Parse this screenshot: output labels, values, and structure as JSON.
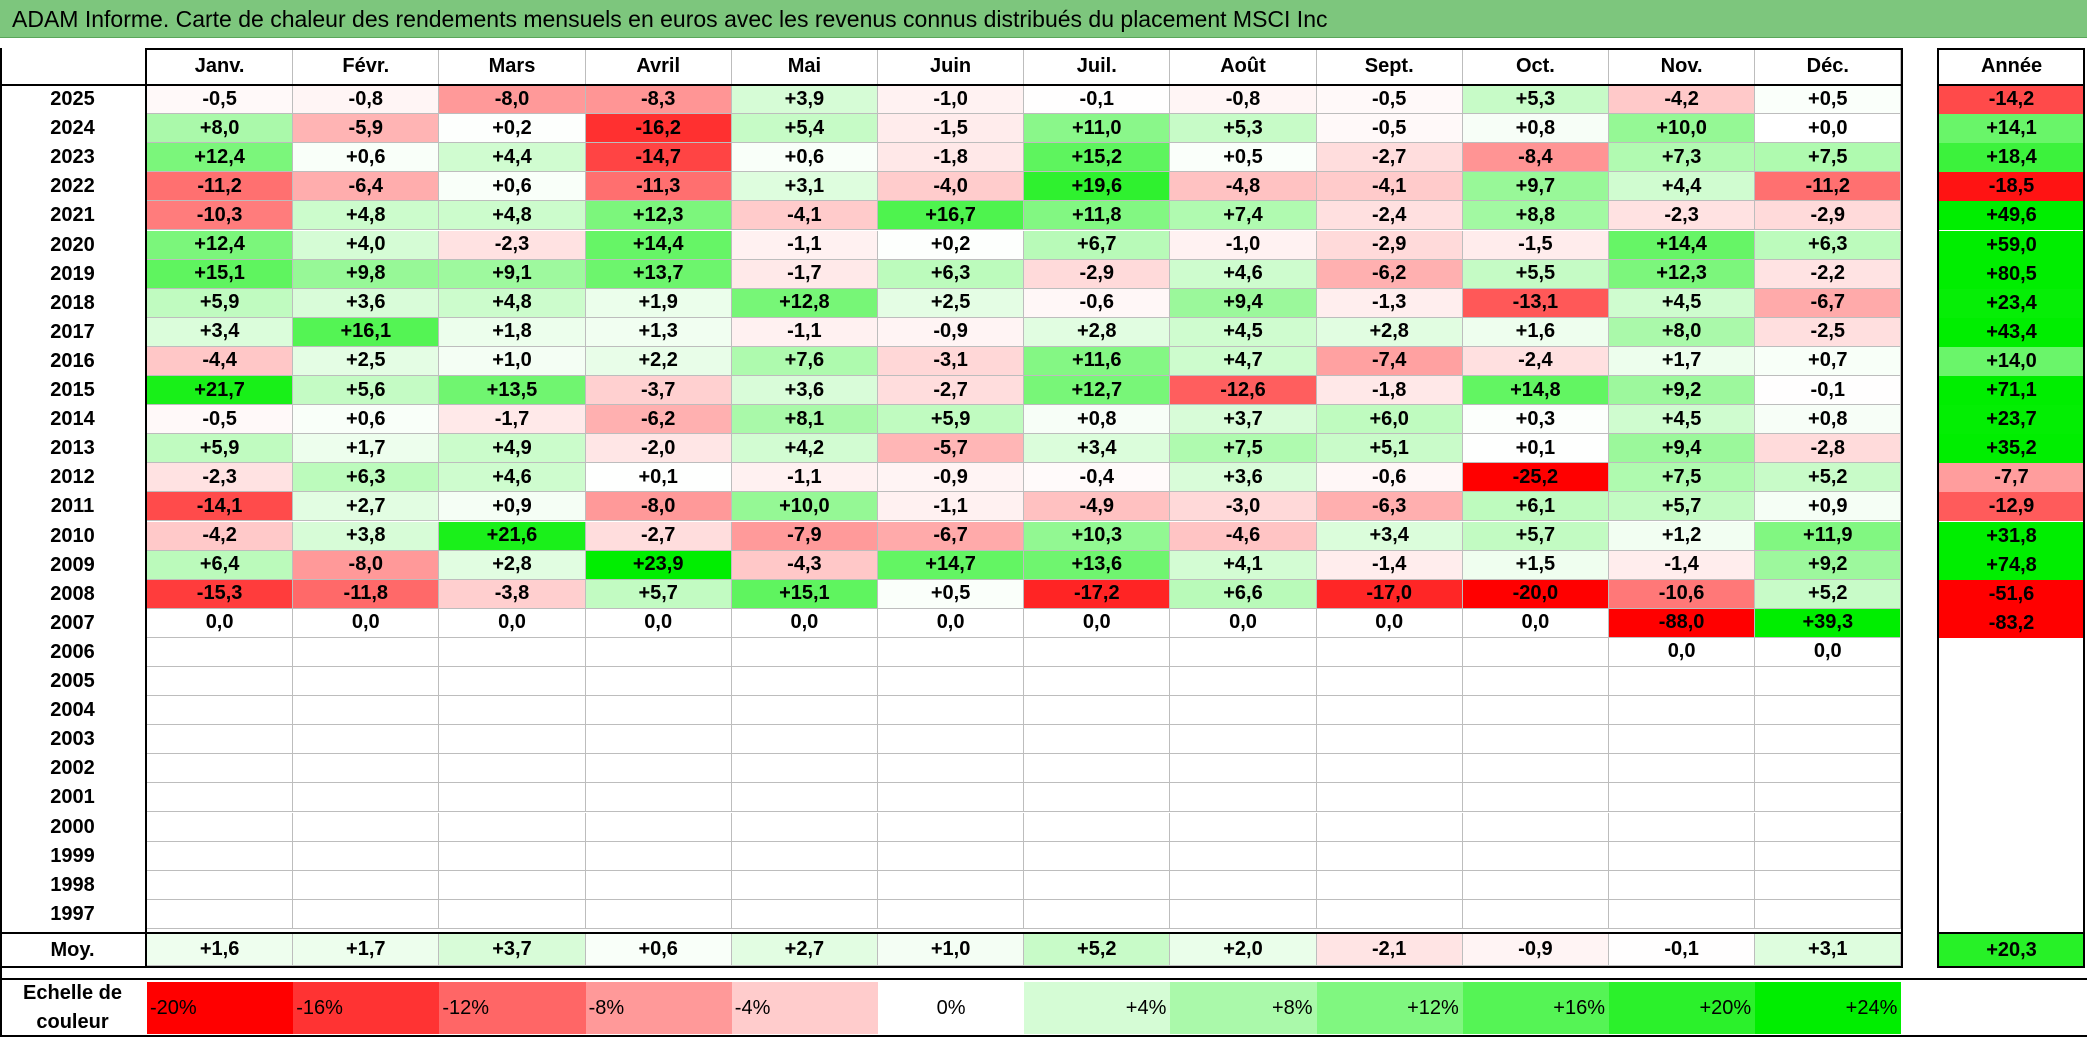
{
  "title": "ADAM Informe. Carte de chaleur des rendements mensuels en euros avec les revenus connus distribués du placement MSCI Inc",
  "chart_data": {
    "type": "heatmap",
    "months": [
      "Janv.",
      "Févr.",
      "Mars",
      "Avril",
      "Mai",
      "Juin",
      "Juil.",
      "Août",
      "Sept.",
      "Oct.",
      "Nov.",
      "Déc."
    ],
    "year_header": "Année",
    "rows": [
      {
        "year": "2025",
        "values": [
          "-0,5",
          "-0,8",
          "-8,0",
          "-8,3",
          "+3,9",
          "-1,0",
          "-0,1",
          "-0,8",
          "-0,5",
          "+5,3",
          "-4,2",
          "+0,5"
        ],
        "annual": "-14,2"
      },
      {
        "year": "2024",
        "values": [
          "+8,0",
          "-5,9",
          "+0,2",
          "-16,2",
          "+5,4",
          "-1,5",
          "+11,0",
          "+5,3",
          "-0,5",
          "+0,8",
          "+10,0",
          "+0,0"
        ],
        "annual": "+14,1"
      },
      {
        "year": "2023",
        "values": [
          "+12,4",
          "+0,6",
          "+4,4",
          "-14,7",
          "+0,6",
          "-1,8",
          "+15,2",
          "+0,5",
          "-2,7",
          "-8,4",
          "+7,3",
          "+7,5"
        ],
        "annual": "+18,4"
      },
      {
        "year": "2022",
        "values": [
          "-11,2",
          "-6,4",
          "+0,6",
          "-11,3",
          "+3,1",
          "-4,0",
          "+19,6",
          "-4,8",
          "-4,1",
          "+9,7",
          "+4,4",
          "-11,2"
        ],
        "annual": "-18,5"
      },
      {
        "year": "2021",
        "values": [
          "-10,3",
          "+4,8",
          "+4,8",
          "+12,3",
          "-4,1",
          "+16,7",
          "+11,8",
          "+7,4",
          "-2,4",
          "+8,8",
          "-2,3",
          "-2,9"
        ],
        "annual": "+49,6"
      },
      {
        "year": "2020",
        "values": [
          "+12,4",
          "+4,0",
          "-2,3",
          "+14,4",
          "-1,1",
          "+0,2",
          "+6,7",
          "-1,0",
          "-2,9",
          "-1,5",
          "+14,4",
          "+6,3"
        ],
        "annual": "+59,0"
      },
      {
        "year": "2019",
        "values": [
          "+15,1",
          "+9,8",
          "+9,1",
          "+13,7",
          "-1,7",
          "+6,3",
          "-2,9",
          "+4,6",
          "-6,2",
          "+5,5",
          "+12,3",
          "-2,2"
        ],
        "annual": "+80,5"
      },
      {
        "year": "2018",
        "values": [
          "+5,9",
          "+3,6",
          "+4,8",
          "+1,9",
          "+12,8",
          "+2,5",
          "-0,6",
          "+9,4",
          "-1,3",
          "-13,1",
          "+4,5",
          "-6,7"
        ],
        "annual": "+23,4"
      },
      {
        "year": "2017",
        "values": [
          "+3,4",
          "+16,1",
          "+1,8",
          "+1,3",
          "-1,1",
          "-0,9",
          "+2,8",
          "+4,5",
          "+2,8",
          "+1,6",
          "+8,0",
          "-2,5"
        ],
        "annual": "+43,4"
      },
      {
        "year": "2016",
        "values": [
          "-4,4",
          "+2,5",
          "+1,0",
          "+2,2",
          "+7,6",
          "-3,1",
          "+11,6",
          "+4,7",
          "-7,4",
          "-2,4",
          "+1,7",
          "+0,7"
        ],
        "annual": "+14,0"
      },
      {
        "year": "2015",
        "values": [
          "+21,7",
          "+5,6",
          "+13,5",
          "-3,7",
          "+3,6",
          "-2,7",
          "+12,7",
          "-12,6",
          "-1,8",
          "+14,8",
          "+9,2",
          "-0,1"
        ],
        "annual": "+71,1"
      },
      {
        "year": "2014",
        "values": [
          "-0,5",
          "+0,6",
          "-1,7",
          "-6,2",
          "+8,1",
          "+5,9",
          "+0,8",
          "+3,7",
          "+6,0",
          "+0,3",
          "+4,5",
          "+0,8"
        ],
        "annual": "+23,7"
      },
      {
        "year": "2013",
        "values": [
          "+5,9",
          "+1,7",
          "+4,9",
          "-2,0",
          "+4,2",
          "-5,7",
          "+3,4",
          "+7,5",
          "+5,1",
          "+0,1",
          "+9,4",
          "-2,8"
        ],
        "annual": "+35,2"
      },
      {
        "year": "2012",
        "values": [
          "-2,3",
          "+6,3",
          "+4,6",
          "+0,1",
          "-1,1",
          "-0,9",
          "-0,4",
          "+3,6",
          "-0,6",
          "-25,2",
          "+7,5",
          "+5,2"
        ],
        "annual": "-7,7"
      },
      {
        "year": "2011",
        "values": [
          "-14,1",
          "+2,7",
          "+0,9",
          "-8,0",
          "+10,0",
          "-1,1",
          "-4,9",
          "-3,0",
          "-6,3",
          "+6,1",
          "+5,7",
          "+0,9"
        ],
        "annual": "-12,9"
      },
      {
        "year": "2010",
        "values": [
          "-4,2",
          "+3,8",
          "+21,6",
          "-2,7",
          "-7,9",
          "-6,7",
          "+10,3",
          "-4,6",
          "+3,4",
          "+5,7",
          "+1,2",
          "+11,9"
        ],
        "annual": "+31,8"
      },
      {
        "year": "2009",
        "values": [
          "+6,4",
          "-8,0",
          "+2,8",
          "+23,9",
          "-4,3",
          "+14,7",
          "+13,6",
          "+4,1",
          "-1,4",
          "+1,5",
          "-1,4",
          "+9,2"
        ],
        "annual": "+74,8"
      },
      {
        "year": "2008",
        "values": [
          "-15,3",
          "-11,8",
          "-3,8",
          "+5,7",
          "+15,1",
          "+0,5",
          "-17,2",
          "+6,6",
          "-17,0",
          "-20,0",
          "-10,6",
          "+5,2"
        ],
        "annual": "-51,6"
      },
      {
        "year": "2007",
        "values": [
          "0,0",
          "0,0",
          "0,0",
          "0,0",
          "0,0",
          "0,0",
          "0,0",
          "0,0",
          "0,0",
          "0,0",
          "-88,0",
          "+39,3"
        ],
        "annual": "-83,2"
      },
      {
        "year": "2006",
        "values": [
          "",
          "",
          "",
          "",
          "",
          "",
          "",
          "",
          "",
          "",
          "0,0",
          "0,0"
        ],
        "annual": ""
      },
      {
        "year": "2005",
        "values": [
          "",
          "",
          "",
          "",
          "",
          "",
          "",
          "",
          "",
          "",
          "",
          ""
        ],
        "annual": ""
      },
      {
        "year": "2004",
        "values": [
          "",
          "",
          "",
          "",
          "",
          "",
          "",
          "",
          "",
          "",
          "",
          ""
        ],
        "annual": ""
      },
      {
        "year": "2003",
        "values": [
          "",
          "",
          "",
          "",
          "",
          "",
          "",
          "",
          "",
          "",
          "",
          ""
        ],
        "annual": ""
      },
      {
        "year": "2002",
        "values": [
          "",
          "",
          "",
          "",
          "",
          "",
          "",
          "",
          "",
          "",
          "",
          ""
        ],
        "annual": ""
      },
      {
        "year": "2001",
        "values": [
          "",
          "",
          "",
          "",
          "",
          "",
          "",
          "",
          "",
          "",
          "",
          ""
        ],
        "annual": ""
      },
      {
        "year": "2000",
        "values": [
          "",
          "",
          "",
          "",
          "",
          "",
          "",
          "",
          "",
          "",
          "",
          ""
        ],
        "annual": ""
      },
      {
        "year": "1999",
        "values": [
          "",
          "",
          "",
          "",
          "",
          "",
          "",
          "",
          "",
          "",
          "",
          ""
        ],
        "annual": ""
      },
      {
        "year": "1998",
        "values": [
          "",
          "",
          "",
          "",
          "",
          "",
          "",
          "",
          "",
          "",
          "",
          ""
        ],
        "annual": ""
      },
      {
        "year": "1997",
        "values": [
          "",
          "",
          "",
          "",
          "",
          "",
          "",
          "",
          "",
          "",
          "",
          ""
        ],
        "annual": ""
      }
    ],
    "average": {
      "label": "Moy.",
      "values": [
        "+1,6",
        "+1,7",
        "+3,7",
        "+0,6",
        "+2,7",
        "+1,0",
        "+5,2",
        "+2,0",
        "-2,1",
        "-0,9",
        "-0,1",
        "+3,1"
      ],
      "annual": "+20,3"
    },
    "scale": {
      "label_line1": "Echelle de",
      "label_line2": "couleur",
      "items": [
        {
          "label": "-20%",
          "value": -20
        },
        {
          "label": "-16%",
          "value": -16
        },
        {
          "label": "-12%",
          "value": -12
        },
        {
          "label": "-8%",
          "value": -8
        },
        {
          "label": "-4%",
          "value": -4
        },
        {
          "label": "0%",
          "value": 0
        },
        {
          "label": "+4%",
          "value": 4
        },
        {
          "label": "+8%",
          "value": 8
        },
        {
          "label": "+12%",
          "value": 12
        },
        {
          "label": "+16%",
          "value": 16
        },
        {
          "label": "+20%",
          "value": 20
        },
        {
          "label": "+24%",
          "value": 24
        }
      ]
    },
    "colors": {
      "negative_max": "#ff0000",
      "zero": "#ffffff",
      "positive_max": "#00ee00"
    }
  }
}
